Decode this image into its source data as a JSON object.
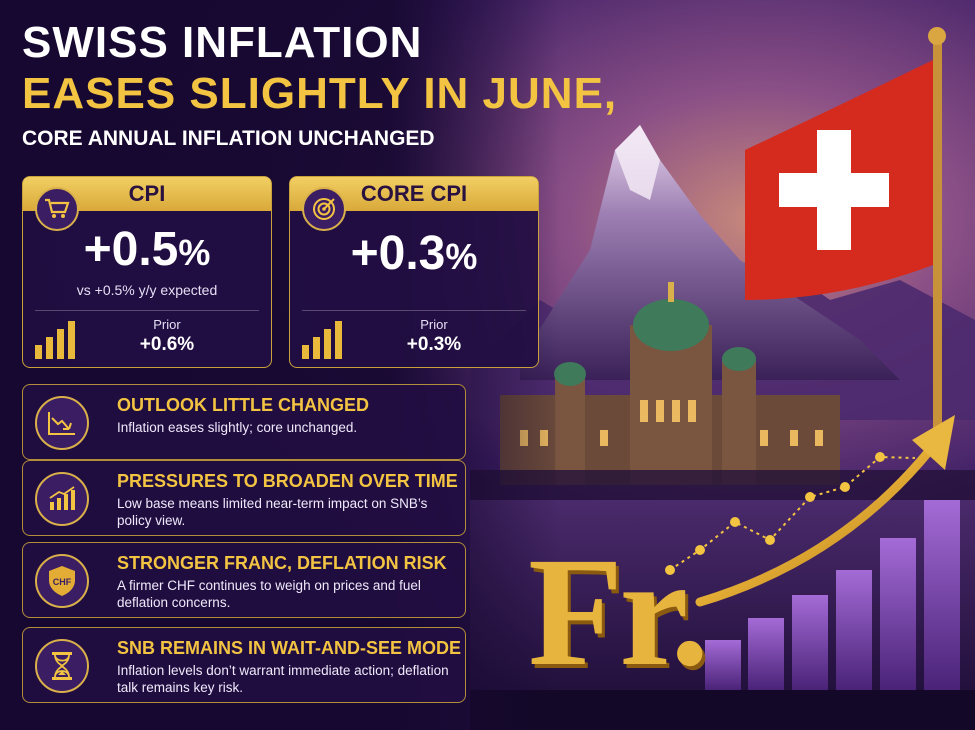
{
  "headline": {
    "line1": "SWISS INFLATION",
    "line2": "EASES SLIGHTLY IN JUNE,",
    "line3": "CORE ANNUAL INFLATION UNCHANGED"
  },
  "cards": [
    {
      "title": "CPI",
      "icon": "shopping-cart-icon",
      "value": "+0.5",
      "unit": "%",
      "note": "vs +0.5% y/y expected",
      "prior_label": "Prior",
      "prior_value": "+0.6%"
    },
    {
      "title": "CORE CPI",
      "icon": "target-icon",
      "value": "+0.3",
      "unit": "%",
      "note": "",
      "prior_label": "Prior",
      "prior_value": "+0.3%"
    }
  ],
  "highlights": [
    {
      "icon": "declining-chart-icon",
      "title": "OUTLOOK LITTLE CHANGED",
      "body": "Inflation eases slightly; core unchanged."
    },
    {
      "icon": "rising-bar-chart-icon",
      "title": "PRESSURES TO BROADEN OVER TIME",
      "body": "Low base means limited near-term impact on SNB’s policy view."
    },
    {
      "icon": "chf-shield-icon",
      "title": "STRONGER FRANC, DEFLATION RISK",
      "body": "A firmer CHF continues to weigh on prices and fuel deflation concerns."
    },
    {
      "icon": "hourglass-icon",
      "title": "SNB REMAINS IN WAIT-AND-SEE MODE",
      "body": "Inflation levels don’t warrant immediate action; deflation talk remains key risk."
    }
  ],
  "illustration": {
    "currency_symbol": "Fr.",
    "flag_colors": {
      "red": "#d52b1e",
      "white": "#ffffff"
    },
    "accent_gold": "#f3c342"
  }
}
